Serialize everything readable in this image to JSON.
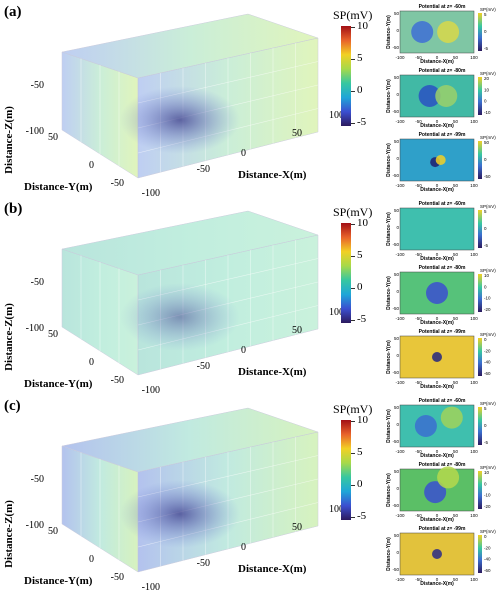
{
  "figure": {
    "axis_labels": {
      "z": "Distance-Z(m)",
      "y": "Distance-Y(m)",
      "x": "Distance-X(m)"
    },
    "z_ticks": [
      "-50",
      "-100"
    ],
    "y_ticks": [
      "50",
      "0",
      "-50",
      "-100"
    ],
    "x_ticks": [
      "100",
      "50",
      "0",
      "-50",
      "-100"
    ],
    "colorbar": {
      "title": "SP(mV)",
      "ticks": [
        "10",
        "5",
        "0",
        "-5"
      ]
    },
    "slice_labels": {
      "ylabel": "Distance-Y(m)",
      "xlabel": "Distance-X(m)",
      "x_ticks": [
        "-100",
        "-50",
        "0",
        "50",
        "100"
      ],
      "y_ticks": [
        "50",
        "0",
        "-50"
      ],
      "cb_title": "SP(mV)"
    },
    "colors": {
      "green": "#8fe08a",
      "teal": "#8ed8c9",
      "blue": "#7a8fe0",
      "dark": "#3a3a8a",
      "yellow": "#e6cf4a"
    }
  },
  "chart_data": [
    {
      "type": "heatmap",
      "panel": "(a)",
      "slices": [
        {
          "title": "Potential at z= -60m",
          "cb_ticks": [
            "5",
            "0",
            "-5"
          ],
          "background": "#7fc6a4",
          "anomalies": [
            {
              "x": -40,
              "y": 0,
              "color": "#3e6fd6"
            },
            {
              "x": 30,
              "y": 0,
              "color": "#d8d84a"
            }
          ]
        },
        {
          "title": "Potential at z= -80m",
          "cb_ticks": [
            "20",
            "10",
            "0",
            "-10"
          ],
          "background": "#41b9a5",
          "anomalies": [
            {
              "x": -20,
              "y": 0,
              "color": "#2a51c2"
            },
            {
              "x": 25,
              "y": 0,
              "color": "#9bd06a"
            }
          ]
        },
        {
          "title": "Potential at z= -99m",
          "cb_ticks": [
            "50",
            "0",
            "-50"
          ],
          "background": "#2fa0c9",
          "anomalies": [
            {
              "x": -5,
              "y": -5,
              "color": "#1f1f6f"
            },
            {
              "x": 10,
              "y": 0,
              "color": "#f2d024"
            }
          ]
        }
      ]
    },
    {
      "type": "heatmap",
      "panel": "(b)",
      "slices": [
        {
          "title": "Potential at z= -60m",
          "cb_ticks": [
            "5",
            "0",
            "-5"
          ],
          "background": "#3fbfae",
          "anomalies": []
        },
        {
          "title": "Potential at z= -80m",
          "cb_ticks": [
            "10",
            "0",
            "-10",
            "-20"
          ],
          "background": "#56c27a",
          "anomalies": [
            {
              "x": 0,
              "y": 0,
              "color": "#3b4fd0"
            }
          ]
        },
        {
          "title": "Potential at z= -99m",
          "cb_ticks": [
            "0",
            "-20",
            "-40",
            "-60"
          ],
          "background": "#e8c63a",
          "anomalies": [
            {
              "x": 0,
              "y": 0,
              "color": "#232580"
            }
          ]
        }
      ]
    },
    {
      "type": "heatmap",
      "panel": "(c)",
      "slices": [
        {
          "title": "Potential at z= -60m",
          "cb_ticks": [
            "5",
            "0",
            "-5"
          ],
          "background": "#3fbfae",
          "anomalies": [
            {
              "x": -30,
              "y": 0,
              "color": "#3b6fd0"
            },
            {
              "x": 40,
              "y": 20,
              "color": "#a0d25a"
            }
          ]
        },
        {
          "title": "Potential at z= -80m",
          "cb_ticks": [
            "10",
            "0",
            "-10",
            "-20"
          ],
          "background": "#5bbf66",
          "anomalies": [
            {
              "x": -5,
              "y": -5,
              "color": "#3b4fd0"
            },
            {
              "x": 30,
              "y": 30,
              "color": "#b5d84c"
            }
          ]
        },
        {
          "title": "Potential at z= -99m",
          "cb_ticks": [
            "0",
            "-20",
            "-40",
            "-60"
          ],
          "background": "#e2c23c",
          "anomalies": [
            {
              "x": 0,
              "y": 0,
              "color": "#2a2a86"
            }
          ]
        }
      ]
    }
  ]
}
